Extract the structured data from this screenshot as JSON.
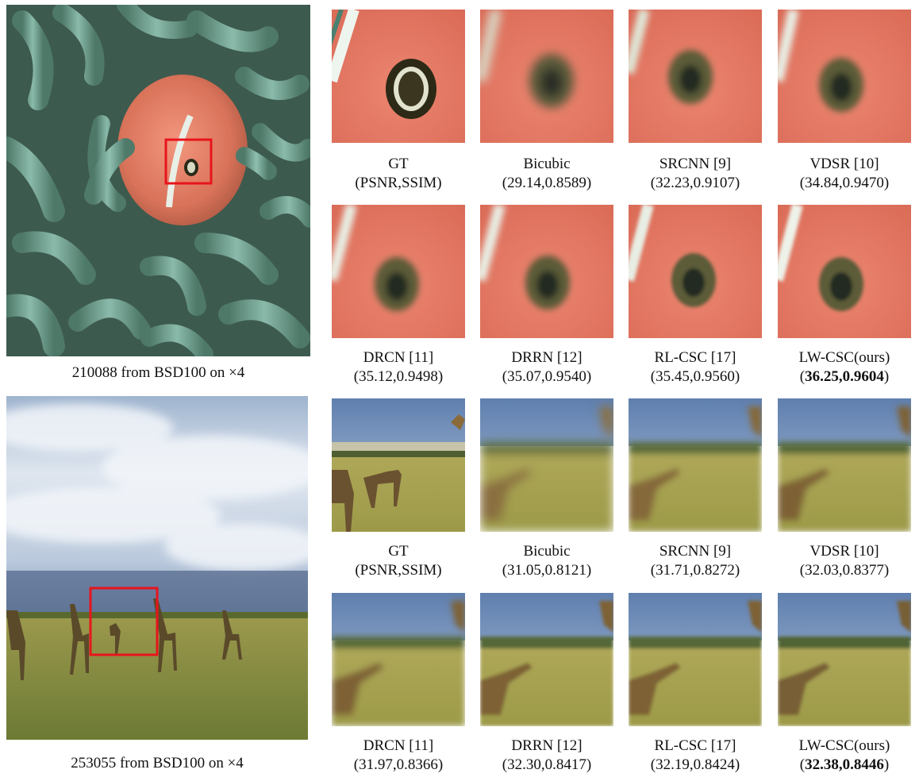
{
  "panels": [
    {
      "id": "fish",
      "main_caption_pre": "210088 from BSD100 on ",
      "main_caption_scale": "×4",
      "methods": [
        {
          "name": "GT",
          "metric": "(PSNR,SSIM)",
          "bold": false
        },
        {
          "name": "Bicubic",
          "metric": "(29.14,0.8589)",
          "bold": false
        },
        {
          "name": "SRCNN [9]",
          "metric": "(32.23,0.9107)",
          "bold": false
        },
        {
          "name": "VDSR [10]",
          "metric": "(34.84,0.9470)",
          "bold": false
        },
        {
          "name": "DRCN [11]",
          "metric": "(35.12,0.9498)",
          "bold": false
        },
        {
          "name": "DRRN [12]",
          "metric": "(35.07,0.9540)",
          "bold": false
        },
        {
          "name": "RL-CSC [17]",
          "metric": "(35.45,0.9560)",
          "bold": false
        },
        {
          "name": "LW-CSC(ours)",
          "metric": "36.25,0.9604",
          "bold": true
        }
      ]
    },
    {
      "id": "giraffe",
      "main_caption_pre": "253055 from BSD100 on ",
      "main_caption_scale": "×4",
      "methods": [
        {
          "name": "GT",
          "metric": "(PSNR,SSIM)",
          "bold": false
        },
        {
          "name": "Bicubic",
          "metric": "(31.05,0.8121)",
          "bold": false
        },
        {
          "name": "SRCNN [9]",
          "metric": "(31.71,0.8272)",
          "bold": false
        },
        {
          "name": "VDSR [10]",
          "metric": "(32.03,0.8377)",
          "bold": false
        },
        {
          "name": "DRCN [11]",
          "metric": "(31.97,0.8366)",
          "bold": false
        },
        {
          "name": "DRRN [12]",
          "metric": "(32.30,0.8417)",
          "bold": false
        },
        {
          "name": "RL-CSC [17]",
          "metric": "(32.19,0.8424)",
          "bold": false
        },
        {
          "name": "LW-CSC(ours)",
          "metric": "32.38,0.8446",
          "bold": true
        }
      ]
    }
  ],
  "colors": {
    "highlight_box": "#e8141b",
    "fish_body": "#e07a5e",
    "anemone": "#6f9c8a",
    "sky": "#c9d6e6",
    "grass": "#8a8a3a"
  }
}
